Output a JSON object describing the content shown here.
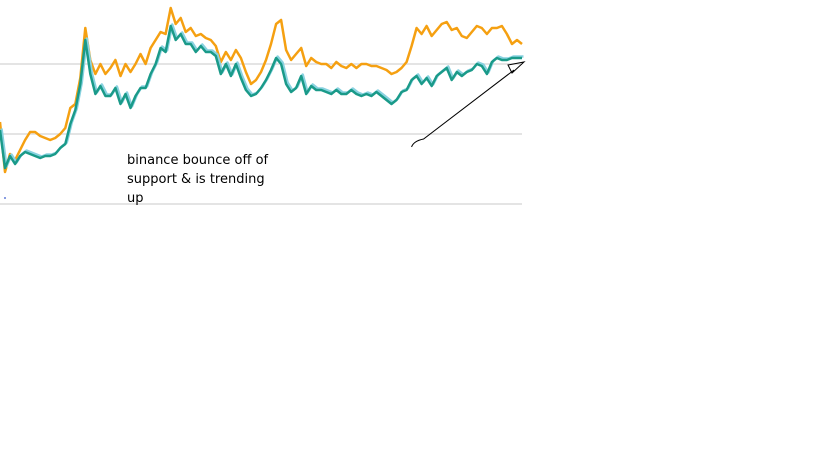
{
  "chart_data": {
    "type": "line",
    "title": "",
    "xlabel": "",
    "ylabel": "",
    "grid": "horizontal",
    "legend": "none",
    "ylim": [
      0,
      100
    ],
    "gridlines_y": [
      0,
      35,
      70
    ],
    "x": [
      0,
      1,
      2,
      3,
      4,
      5,
      6,
      7,
      8,
      9,
      10,
      11,
      12,
      13,
      14,
      15,
      16,
      17,
      18,
      19,
      20,
      21,
      22,
      23,
      24,
      25,
      26,
      27,
      28,
      29,
      30,
      31,
      32,
      33,
      34,
      35,
      36,
      37,
      38,
      39,
      40,
      41,
      42,
      43,
      44,
      45,
      46,
      47,
      48,
      49,
      50,
      51,
      52,
      53,
      54,
      55,
      56,
      57,
      58,
      59,
      60,
      61,
      62,
      63,
      64,
      65,
      66,
      67,
      68,
      69,
      70,
      71,
      72,
      73,
      74,
      75,
      76,
      77,
      78,
      79,
      80,
      81,
      82,
      83,
      84,
      85,
      86,
      87,
      88,
      89,
      90,
      91,
      92,
      93,
      94,
      95,
      96,
      97,
      98,
      99,
      100,
      101,
      102,
      103,
      104
    ],
    "series": [
      {
        "color": "#f5a011",
        "values": [
          41,
          16,
          25,
          22,
          27,
          32,
          36,
          36,
          34,
          33,
          32,
          33,
          35,
          38,
          48,
          50,
          63,
          88,
          72,
          65,
          70,
          65,
          68,
          72,
          64,
          70,
          66,
          70,
          75,
          70,
          78,
          82,
          86,
          85,
          98,
          90,
          93,
          86,
          88,
          84,
          85,
          83,
          82,
          79,
          71,
          76,
          72,
          77,
          73,
          66,
          60,
          62,
          66,
          72,
          80,
          90,
          92,
          77,
          72,
          75,
          78,
          69,
          73,
          71,
          70,
          70,
          68,
          71,
          69,
          68,
          70,
          68,
          70,
          70,
          69,
          69,
          68,
          67,
          65,
          66,
          68,
          71,
          79,
          88,
          85,
          89,
          84,
          87,
          90,
          91,
          87,
          88,
          84,
          83,
          86,
          89,
          88,
          85,
          88,
          88,
          89,
          85,
          80,
          82,
          80
        ],
        "style": "single"
      },
      {
        "color": "#1a9a89",
        "shadow_color": "#89d2e0",
        "values": [
          37,
          18,
          24,
          20,
          24,
          26,
          25,
          24,
          23,
          24,
          24,
          25,
          28,
          30,
          40,
          47,
          60,
          82,
          65,
          55,
          59,
          54,
          54,
          58,
          50,
          55,
          48,
          54,
          58,
          58,
          65,
          70,
          78,
          76,
          89,
          82,
          85,
          80,
          80,
          76,
          79,
          76,
          76,
          74,
          65,
          70,
          64,
          70,
          63,
          57,
          54,
          55,
          58,
          62,
          67,
          73,
          70,
          60,
          56,
          58,
          64,
          55,
          59,
          57,
          57,
          56,
          55,
          57,
          55,
          55,
          57,
          55,
          54,
          55,
          54,
          56,
          54,
          52,
          50,
          52,
          56,
          57,
          62,
          64,
          60,
          63,
          59,
          64,
          66,
          68,
          62,
          66,
          64,
          66,
          67,
          70,
          69,
          65,
          71,
          73,
          72,
          72,
          73,
          73,
          73
        ],
        "style": "double"
      }
    ]
  },
  "annotation": {
    "text": "binance bounce off of support & is trending up"
  },
  "trend_arrow": {
    "x_start": 82,
    "x_end": 104,
    "value_start": 30,
    "value_end": 70
  }
}
